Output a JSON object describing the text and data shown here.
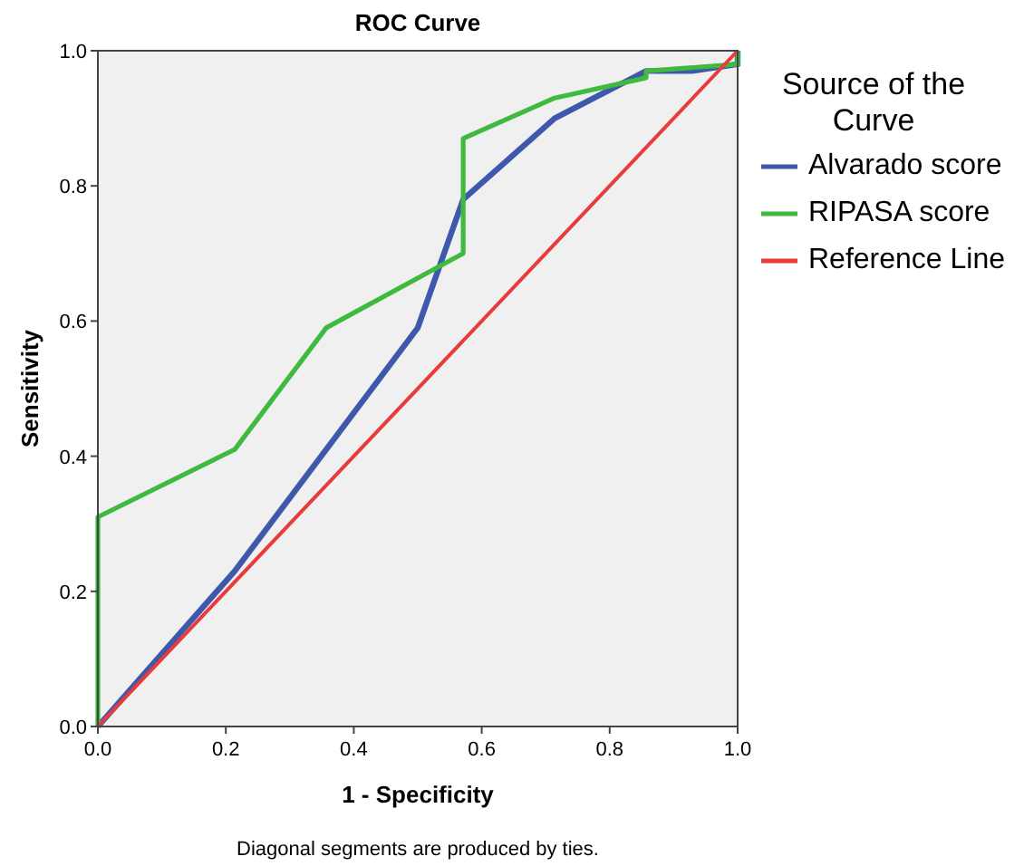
{
  "chart_data": {
    "type": "line",
    "title": "ROC Curve",
    "xlabel": "1 - Specificity",
    "ylabel": "Sensitivity",
    "legend_title": "Source of the Curve",
    "legend": "right",
    "grid": false,
    "marker": "none",
    "line_style": "solid",
    "xlim": [
      0,
      1
    ],
    "ylim": [
      0,
      1
    ],
    "xticks": [
      {
        "value": 0,
        "label": "0.0"
      },
      {
        "value": 0.2,
        "label": "0.2"
      },
      {
        "value": 0.4,
        "label": "0.4"
      },
      {
        "value": 0.6,
        "label": "0.6"
      },
      {
        "value": 0.8,
        "label": "0.8"
      },
      {
        "value": 1,
        "label": "1.0"
      }
    ],
    "yticks": [
      {
        "value": 0,
        "label": "0.0"
      },
      {
        "value": 0.2,
        "label": "0.2"
      },
      {
        "value": 0.4,
        "label": "0.4"
      },
      {
        "value": 0.6,
        "label": "0.6"
      },
      {
        "value": 0.8,
        "label": "0.8"
      },
      {
        "value": 1,
        "label": "1.0"
      }
    ],
    "annotations": [
      "Diagonal segments are produced by ties."
    ],
    "series": [
      {
        "name": "Alvarado score",
        "color": "#3e58ac",
        "x": [
          0,
          0.214,
          0.5,
          0.571,
          0.714,
          0.857,
          0.929,
          1,
          1
        ],
        "values": [
          0,
          0.23,
          0.59,
          0.78,
          0.9,
          0.97,
          0.97,
          0.98,
          1
        ]
      },
      {
        "name": "RIPASA score",
        "color": "#3fba3f",
        "x": [
          0,
          0,
          0.214,
          0.357,
          0.571,
          0.571,
          0.714,
          0.857,
          0.857,
          1,
          1
        ],
        "values": [
          0,
          0.31,
          0.41,
          0.59,
          0.7,
          0.87,
          0.93,
          0.96,
          0.97,
          0.98,
          1
        ]
      },
      {
        "name": "Reference Line",
        "color": "#e83b3b",
        "x": [
          0,
          1
        ],
        "values": [
          0,
          1
        ]
      }
    ]
  }
}
